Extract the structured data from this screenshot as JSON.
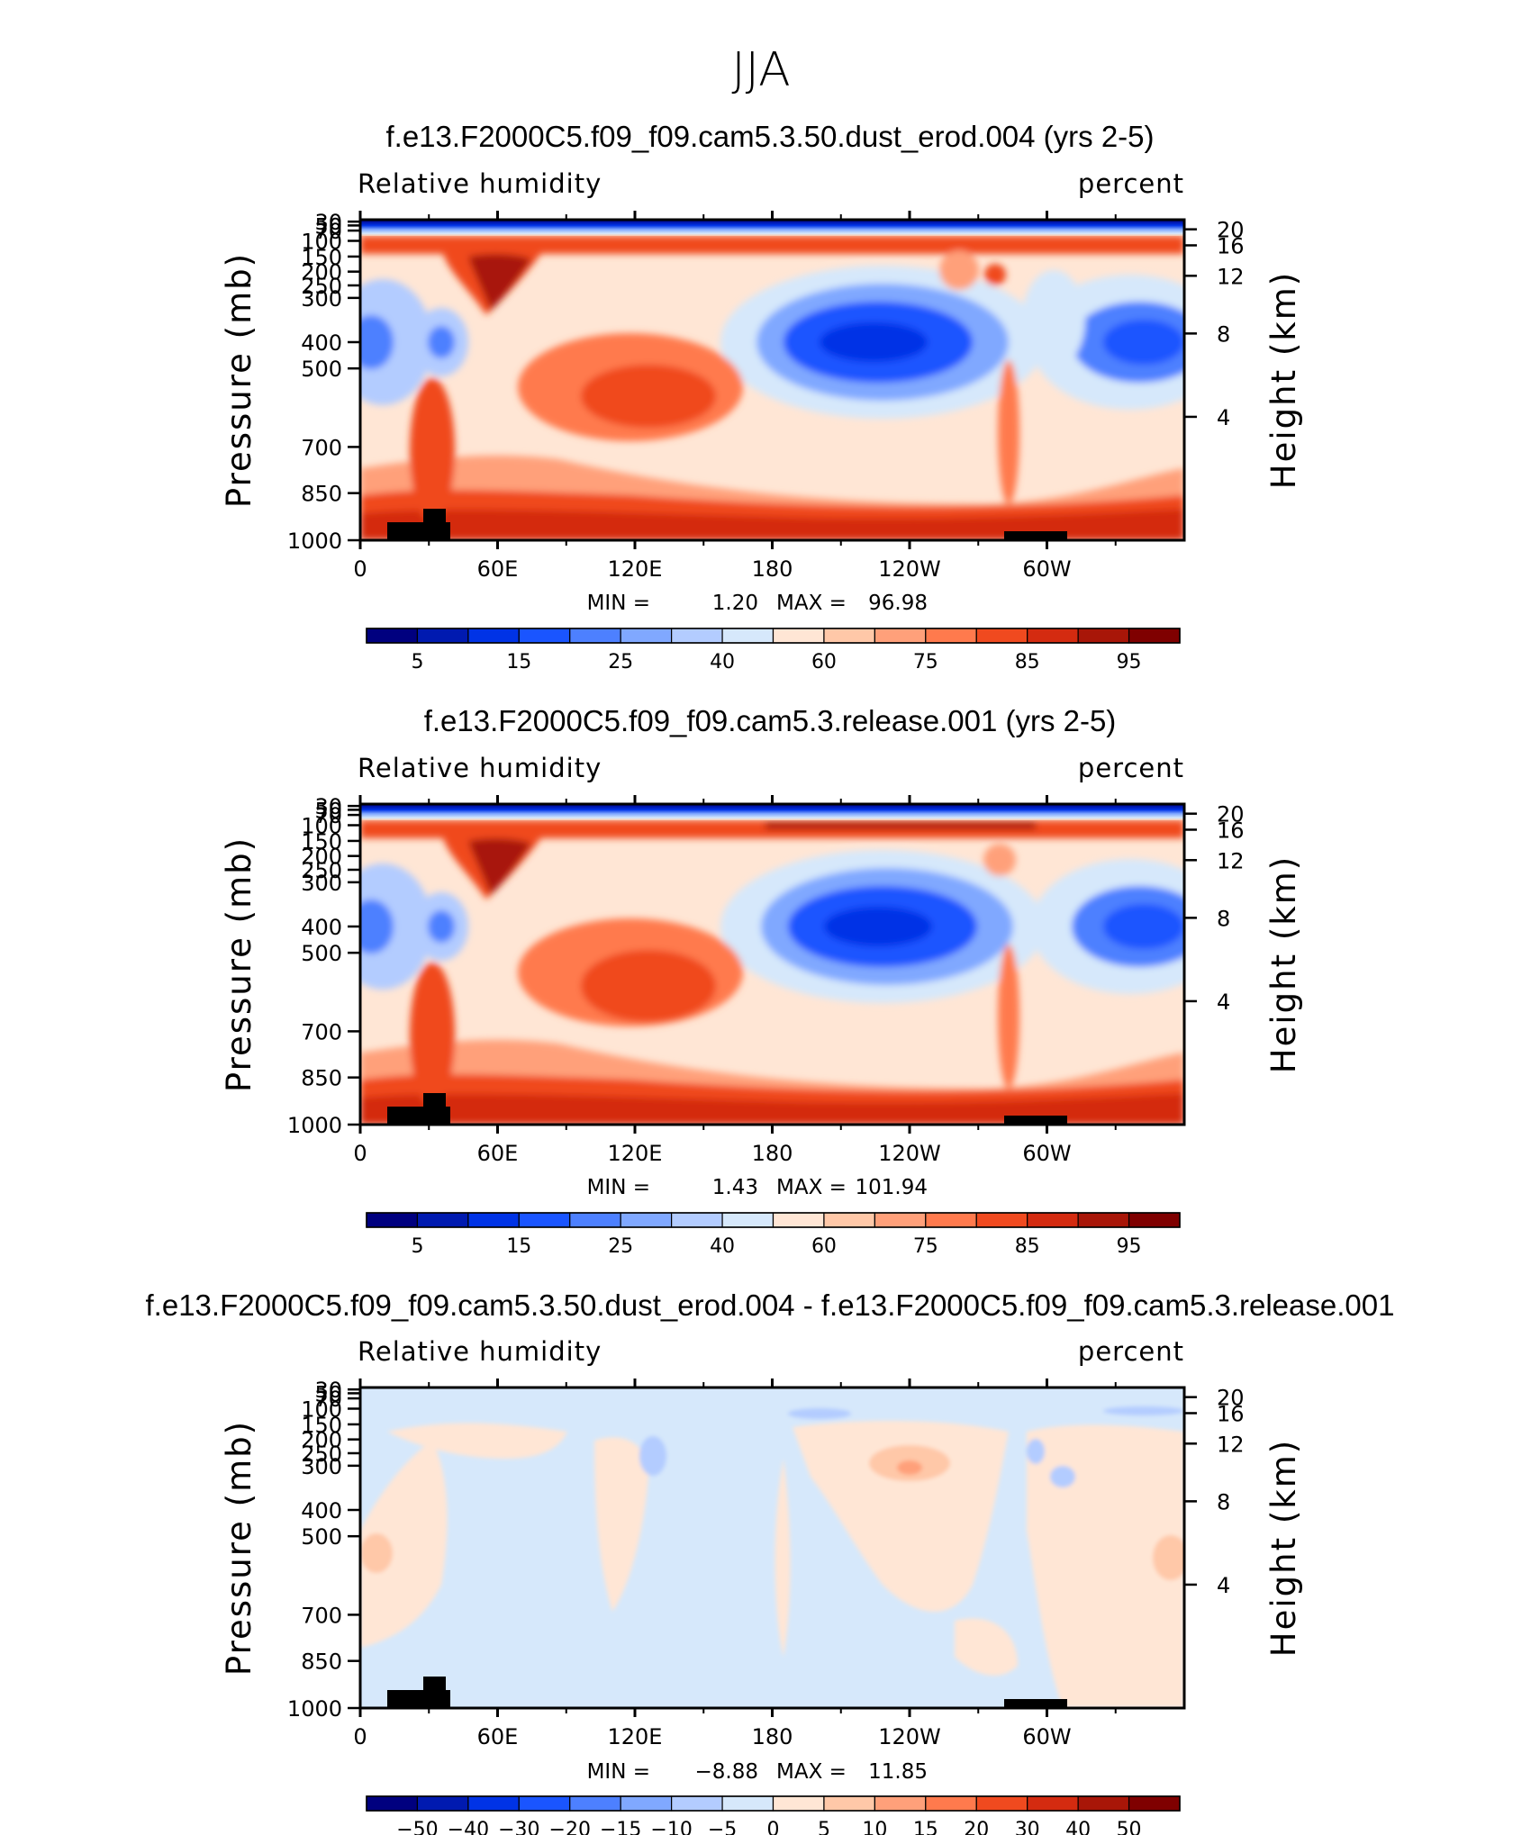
{
  "figure": {
    "title": "JJA"
  },
  "panels": [
    {
      "id": "p1",
      "title": "f.e13.F2000C5.f09_f09.cam5.3.50.dust_erod.004 (yrs 2-5)",
      "variable": "Relative humidity",
      "units": "percent",
      "min_text": "1.20",
      "max_text": "96.98"
    },
    {
      "id": "p2",
      "title": "f.e13.F2000C5.f09_f09.cam5.3.release.001 (yrs 2-5)",
      "variable": "Relative humidity",
      "units": "percent",
      "min_text": "1.43",
      "max_text": "101.94"
    },
    {
      "id": "p3",
      "title": "f.e13.F2000C5.f09_f09.cam5.3.50.dust_erod.004 - f.e13.F2000C5.f09_f09.cam5.3.release.001",
      "variable": "Relative humidity",
      "units": "percent",
      "min_text": "−8.88",
      "max_text": "11.85"
    }
  ],
  "labels": {
    "min_label": "MIN =",
    "max_label": "MAX =",
    "ylabel_left": "Pressure (mb)",
    "ylabel_right": "Height (km)"
  },
  "chart_data": {
    "type": "heatmap",
    "x_ticks": [
      "0",
      "60E",
      "120E",
      "180",
      "120W",
      "60W"
    ],
    "y_ticks_pressure": [
      "30",
      "50",
      "70",
      "100",
      "150",
      "200",
      "250",
      "300",
      "400",
      "500",
      "700",
      "850",
      "1000"
    ],
    "y_ticks_height": [
      "20",
      "16",
      "12",
      "8",
      "4"
    ],
    "colorbars": [
      {
        "labels": [
          "5",
          "15",
          "25",
          "40",
          "60",
          "75",
          "85",
          "95"
        ],
        "colors": [
          "#00007f",
          "#001ab0",
          "#0033e6",
          "#1a55ff",
          "#4d80ff",
          "#80a8ff",
          "#b3ccff",
          "#d6e8fb",
          "#ffe6d5",
          "#ffc8a8",
          "#ffa07a",
          "#ff7a4d",
          "#f04a1f",
          "#d42b10",
          "#a81608",
          "#7f0000"
        ]
      },
      {
        "labels": [
          "5",
          "15",
          "25",
          "40",
          "60",
          "75",
          "85",
          "95"
        ],
        "colors": [
          "#00007f",
          "#001ab0",
          "#0033e6",
          "#1a55ff",
          "#4d80ff",
          "#80a8ff",
          "#b3ccff",
          "#d6e8fb",
          "#ffe6d5",
          "#ffc8a8",
          "#ffa07a",
          "#ff7a4d",
          "#f04a1f",
          "#d42b10",
          "#a81608",
          "#7f0000"
        ]
      },
      {
        "labels": [
          "−50",
          "−40",
          "−30",
          "−20",
          "−15",
          "−10",
          "−5",
          "0",
          "5",
          "10",
          "15",
          "20",
          "30",
          "40",
          "50"
        ],
        "colors": [
          "#00007f",
          "#001ab0",
          "#0033e6",
          "#1a55ff",
          "#4d80ff",
          "#80a8ff",
          "#b3ccff",
          "#d6e8fb",
          "#ffe6d5",
          "#ffc8a8",
          "#ffa07a",
          "#ff7a4d",
          "#f04a1f",
          "#d42b10",
          "#a81608",
          "#7f0000"
        ]
      }
    ]
  }
}
